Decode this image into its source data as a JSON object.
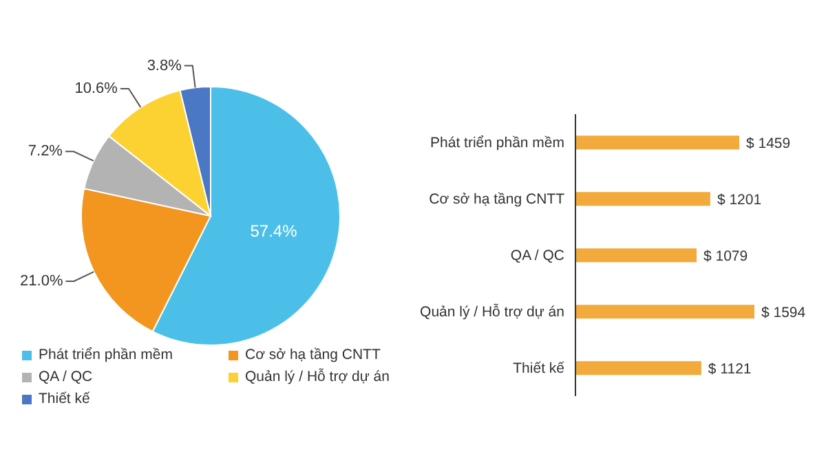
{
  "chart_data": [
    {
      "type": "pie",
      "categories": [
        "Phát triển phần mềm",
        "Cơ sở hạ tầng CNTT",
        "QA / QC",
        "Quản lý / Hỗ trợ dự án",
        "Thiết kế"
      ],
      "values": [
        57.4,
        21.0,
        7.2,
        10.6,
        3.8
      ],
      "colors": [
        "#4cbfe9",
        "#f3961f",
        "#b3b3b3",
        "#fcd233",
        "#4a78c5"
      ],
      "value_labels": [
        "57.4%",
        "21.0%",
        "7.2%",
        "10.6%",
        "3.8%"
      ],
      "legend": "bottom"
    },
    {
      "type": "bar",
      "orientation": "horizontal",
      "categories": [
        "Phát triển phần mềm",
        "Cơ sở hạ tầng CNTT",
        "QA / QC",
        "Quản lý / Hỗ trợ dự án",
        "Thiết kế"
      ],
      "values": [
        1459,
        1201,
        1079,
        1594,
        1121
      ],
      "color": "#f2aa3c",
      "value_labels": [
        "$ 1459",
        "$ 1201",
        "$ 1079",
        "$ 1594",
        "$ 1121"
      ]
    }
  ]
}
